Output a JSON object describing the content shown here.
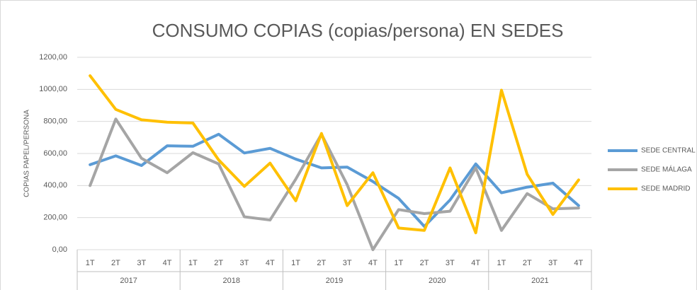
{
  "chart_data": {
    "type": "line",
    "title": "CONSUMO COPIAS (copias/persona) EN SEDES",
    "y_label": "COPIAS PAPEL/PERSONA",
    "categories": [
      "1T",
      "2T",
      "3T",
      "4T",
      "1T",
      "2T",
      "3T",
      "4T",
      "1T",
      "2T",
      "3T",
      "4T",
      "1T",
      "2T",
      "3T",
      "4T",
      "1T",
      "2T",
      "3T",
      "4T"
    ],
    "category_groups": [
      "2017",
      "2018",
      "2019",
      "2020",
      "2021"
    ],
    "series": [
      {
        "name": "SEDE CENTRAL",
        "color": "#5b9bd5",
        "values": [
          530,
          585,
          525,
          648,
          645,
          720,
          603,
          632,
          565,
          510,
          515,
          425,
          320,
          145,
          310,
          535,
          355,
          390,
          415,
          275
        ]
      },
      {
        "name": "SEDE MÁLAGA",
        "color": "#a5a5a5",
        "values": [
          400,
          815,
          570,
          480,
          605,
          535,
          205,
          185,
          440,
          720,
          405,
          0,
          250,
          225,
          240,
          510,
          120,
          350,
          255,
          260
        ]
      },
      {
        "name": "SEDE MADRID",
        "color": "#ffc000",
        "values": [
          1085,
          875,
          810,
          795,
          790,
          560,
          395,
          540,
          305,
          725,
          275,
          480,
          135,
          120,
          510,
          105,
          995,
          470,
          220,
          435
        ]
      }
    ],
    "ylim": [
      0,
      1200
    ],
    "yticks": [
      {
        "value": 0,
        "label": "0,00"
      },
      {
        "value": 200,
        "label": "200,00"
      },
      {
        "value": 400,
        "label": "400,00"
      },
      {
        "value": 600,
        "label": "600,00"
      },
      {
        "value": 800,
        "label": "800,00"
      },
      {
        "value": 1000,
        "label": "1000,00"
      },
      {
        "value": 1200,
        "label": "1200,00"
      }
    ],
    "grid": true,
    "legend": "right"
  }
}
